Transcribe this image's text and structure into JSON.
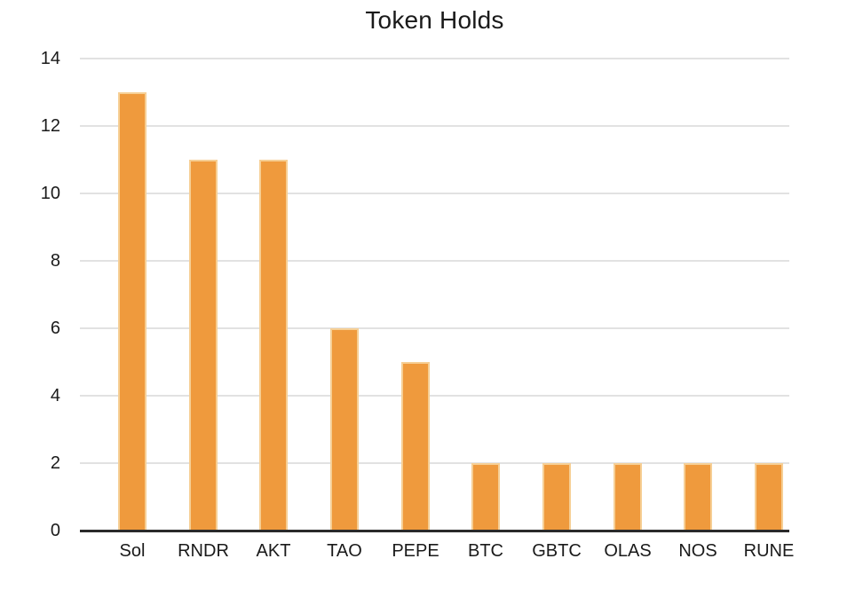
{
  "chart_title": "Token Holds",
  "colors": {
    "bar_fill": "#EF9A3D",
    "bar_stroke": "#F6CF95",
    "gridline": "#E2E2E2",
    "axis_line": "#2A2A2A",
    "text": "#1A1A1A",
    "background": "#FFFFFF"
  },
  "chart_data": {
    "type": "bar",
    "title": "Token Holds",
    "categories": [
      "Sol",
      "RNDR",
      "AKT",
      "TAO",
      "PEPE",
      "BTC",
      "GBTC",
      "OLAS",
      "NOS",
      "RUNE"
    ],
    "values": [
      13,
      11,
      11,
      6,
      5,
      2,
      2,
      2,
      2,
      2
    ],
    "xlabel": "",
    "ylabel": "",
    "ylim": [
      0,
      14
    ],
    "yticks": [
      0,
      2,
      4,
      6,
      8,
      10,
      12,
      14
    ],
    "grid": true,
    "gridline_orientation": "horizontal",
    "legend_position": "none",
    "bar_color": "#EF9A3D"
  }
}
